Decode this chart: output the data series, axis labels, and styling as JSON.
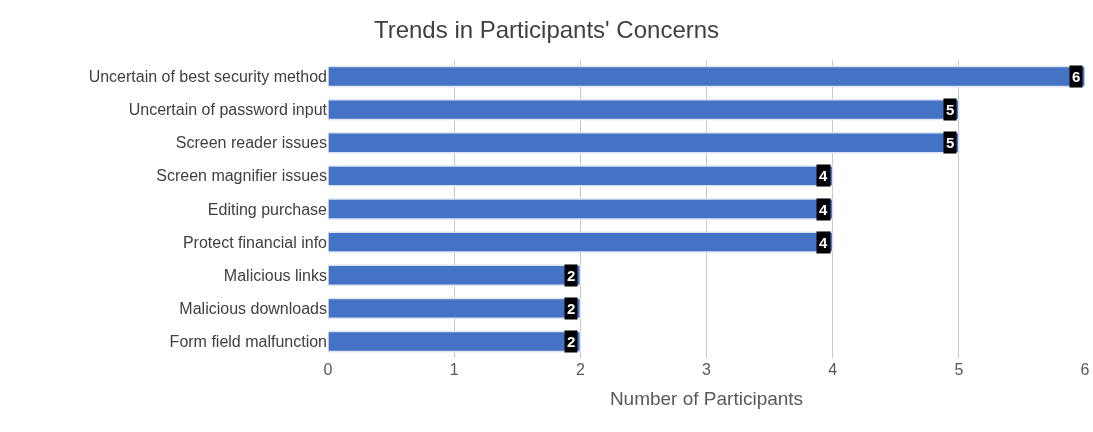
{
  "chart_data": {
    "type": "bar",
    "orientation": "horizontal",
    "title": "Trends in Participants' Concerns",
    "xlabel": "Number of Participants",
    "categories": [
      "Uncertain of best security method",
      "Uncertain of password input",
      "Screen reader issues",
      "Screen magnifier issues",
      "Editing purchase",
      "Protect financial info",
      "Malicious links",
      "Malicious downloads",
      "Form field malfunction"
    ],
    "values": [
      6,
      5,
      5,
      4,
      4,
      4,
      2,
      2,
      2
    ],
    "color": "#4472c4",
    "xlim": [
      0,
      6
    ],
    "xticks": [
      0,
      1,
      2,
      3,
      4,
      5,
      6
    ],
    "grid": "x",
    "data_labels": true,
    "legend": false
  }
}
